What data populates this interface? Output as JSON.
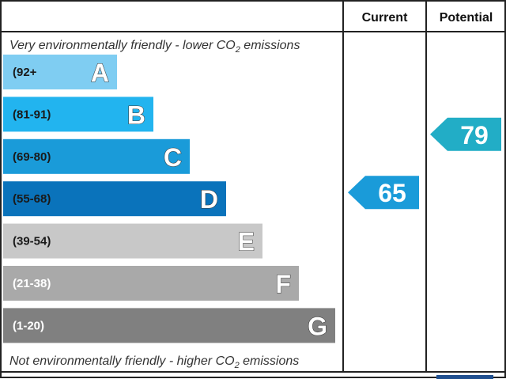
{
  "chart_data": {
    "type": "bar",
    "headers": {
      "current": "Current",
      "potential": "Potential"
    },
    "top_note": "Very environmentally friendly - lower CO",
    "bottom_note": "Not environmentally friendly - higher CO",
    "note_subscript": "2",
    "note_suffix": " emissions",
    "bands": [
      {
        "letter": "A",
        "range": "(92+",
        "color": "#7fcdf2",
        "label_color": "#1a1a1a"
      },
      {
        "letter": "B",
        "range": "(81-91)",
        "color": "#22b4ef",
        "label_color": "#1a1a1a"
      },
      {
        "letter": "C",
        "range": "(69-80)",
        "color": "#1a9bd9",
        "label_color": "#1a1a1a"
      },
      {
        "letter": "D",
        "range": "(55-68)",
        "color": "#0a73bb",
        "label_color": "#1a1a1a"
      },
      {
        "letter": "E",
        "range": "(39-54)",
        "color": "#c8c8c8",
        "label_color": "#1a1a1a"
      },
      {
        "letter": "F",
        "range": "(21-38)",
        "color": "#a9a9a9",
        "label_color": "#ffffff"
      },
      {
        "letter": "G",
        "range": "(1-20)",
        "color": "#808080",
        "label_color": "#ffffff"
      }
    ],
    "current": {
      "value": "65",
      "band": "D",
      "color": "#1a9bd9"
    },
    "potential": {
      "value": "79",
      "band": "C",
      "color": "#22adc6"
    }
  }
}
